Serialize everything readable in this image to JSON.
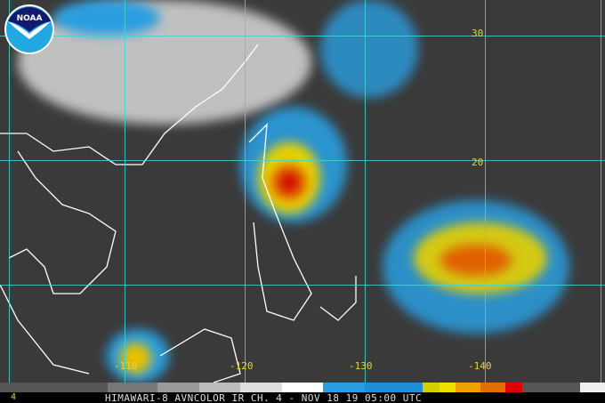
{
  "caption": "HIMAWARI-8 AVNCOLOR IR CH. 4  - NOV 18 19 05:00 UTC",
  "corner_label": "4",
  "logo_text": "NOAA",
  "longitude_labels": [
    "-110",
    "-120",
    "-130",
    "-140"
  ],
  "latitude_labels": [
    "30",
    "20"
  ],
  "colors": {
    "grid": "#3fd4d4",
    "labels": "#e8d23a",
    "scale": [
      "#555",
      "#777",
      "#999",
      "#bbb",
      "#ddd",
      "#fff",
      "#2a9ee0",
      "#1f8fd8",
      "#d6d000",
      "#f0e000",
      "#f0a000",
      "#e07000",
      "#e00000",
      "#555",
      "#eee"
    ]
  }
}
